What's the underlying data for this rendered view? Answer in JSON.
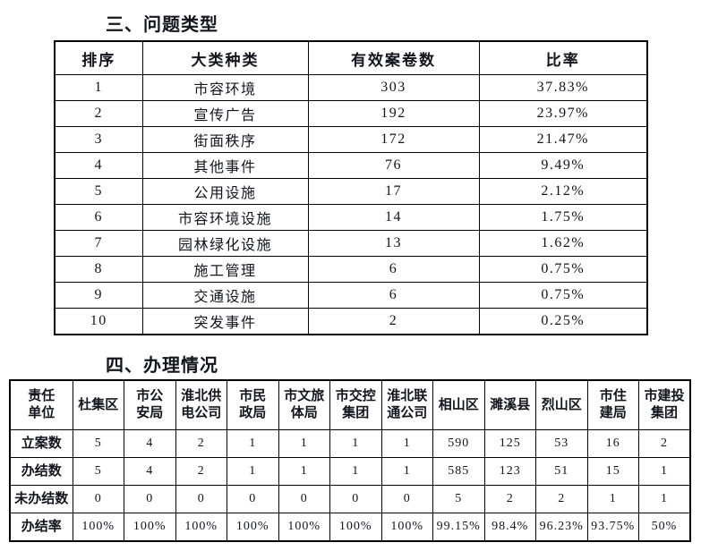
{
  "page": {
    "background": "#ffffff",
    "text_color": "#14141f",
    "border_color": "#000000"
  },
  "problem_types": {
    "title": "三、问题类型",
    "headers": [
      "排序",
      "大类种类",
      "有效案卷数",
      "比率"
    ],
    "rows": [
      [
        "1",
        "市容环境",
        "303",
        "37.83%"
      ],
      [
        "2",
        "宣传广告",
        "192",
        "23.97%"
      ],
      [
        "3",
        "街面秩序",
        "172",
        "21.47%"
      ],
      [
        "4",
        "其他事件",
        "76",
        "9.49%"
      ],
      [
        "5",
        "公用设施",
        "17",
        "2.12%"
      ],
      [
        "6",
        "市容环境设施",
        "14",
        "1.75%"
      ],
      [
        "7",
        "园林绿化设施",
        "13",
        "1.62%"
      ],
      [
        "8",
        "施工管理",
        "6",
        "0.75%"
      ],
      [
        "9",
        "交通设施",
        "6",
        "0.75%"
      ],
      [
        "10",
        "突发事件",
        "2",
        "0.25%"
      ]
    ]
  },
  "handling": {
    "title": "四、办理情况",
    "corner_header": "责任\n单位",
    "unit_headers": [
      "杜集区",
      "市公\n安局",
      "淮北供\n电公司",
      "市民\n政局",
      "市文旅\n体局",
      "市交控\n集团",
      "淮北联\n通公司",
      "相山区",
      "濉溪县",
      "烈山区",
      "市住\n建局",
      "市建投\n集团"
    ],
    "rows": [
      {
        "label": "立案数",
        "values": [
          "5",
          "4",
          "2",
          "1",
          "1",
          "1",
          "1",
          "590",
          "125",
          "53",
          "16",
          "2"
        ]
      },
      {
        "label": "办结数",
        "values": [
          "5",
          "4",
          "2",
          "1",
          "1",
          "1",
          "1",
          "585",
          "123",
          "51",
          "15",
          "1"
        ]
      },
      {
        "label": "未办结数",
        "values": [
          "0",
          "0",
          "0",
          "0",
          "0",
          "0",
          "0",
          "5",
          "2",
          "2",
          "1",
          "1"
        ]
      },
      {
        "label": "办结率",
        "values": [
          "100%",
          "100%",
          "100%",
          "100%",
          "100%",
          "100%",
          "100%",
          "99.15%",
          "98.4%",
          "96.23%",
          "93.75%",
          "50%"
        ]
      }
    ]
  }
}
